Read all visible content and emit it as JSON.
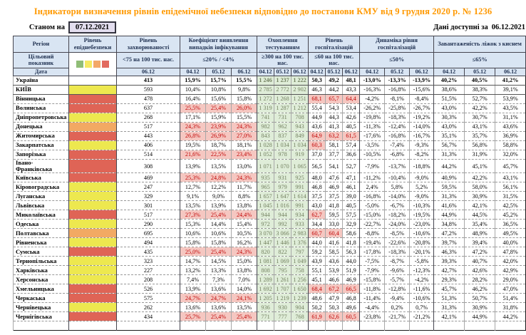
{
  "title": "Індикатори визначення рівнів епідемічної небезпеки відповідно до постанови КМУ від 9 грудня 2020 р. № 1236",
  "as_of_label": "Станом на",
  "as_of_date": "07.12.2021",
  "available_label": "Дані доступні за",
  "available_date": "06.12.2021",
  "colors": {
    "title": "#FF9900",
    "header_bg": "#D9E5F3",
    "asof_box_bg": "#E3DEEF",
    "testing_bg": "#DFEDD8",
    "alert_bg": "#F5C7C1",
    "alert_text": "#C00000"
  },
  "table": {
    "region_header": "Регіон",
    "target_header": "Цільовий показник",
    "date_header": "Дата",
    "legend_colors": {
      "green": "#90BD77",
      "yellow": "#F5E962",
      "orange": "#F3A869",
      "red": "#E26A5E"
    },
    "level_colors": {
      "none": "#FFFFFF",
      "yellow": "#EDE84F",
      "orange": "#F2A963",
      "red": "#DF6456"
    },
    "groups": [
      {
        "label": "Рівень епіднебезпеки",
        "target": "",
        "dates": []
      },
      {
        "label": "Рівень захворюваності",
        "target": "<75 на 100 тис. нас.",
        "dates": [
          "06.12"
        ]
      },
      {
        "label": "Коефіцієнт виявлення випадків інфікування",
        "target": "≤20% / <4%",
        "dates": [
          "04.12",
          "05.12",
          "06.12"
        ]
      },
      {
        "label": "Охоплення тестуванням",
        "target": "≥300 на 100 тис. нас.",
        "dates": [
          "04.12",
          "05.12",
          "06.12"
        ]
      },
      {
        "label": "Рівень госпіталізацій",
        "target": "≤60 на 100 тис. нас.",
        "dates": [
          "04.12",
          "05.12",
          "06.12"
        ]
      },
      {
        "label": "Динаміка рівня госпіталізацій",
        "target": "≤50%",
        "dates": [
          "04.12",
          "05.12",
          "06.12"
        ]
      },
      {
        "label": "Завантаженість ліжок з киснем",
        "target": "≤65%",
        "dates": [
          "04.12",
          "05.12",
          "06.12"
        ]
      }
    ],
    "rows": [
      {
        "region": "Україна",
        "level": "none",
        "incidence": "413",
        "detection": [
          "15,9%",
          "15,7%",
          "15,5%"
        ],
        "testing": [
          "1 246",
          "1 237",
          "1 222"
        ],
        "hosp": [
          "50,3",
          "49,2",
          "48,1"
        ],
        "dynamics": [
          "-13,0%",
          "-13,3%",
          "-13,9%"
        ],
        "beds": [
          "40,2%",
          "40,5%",
          "41,2%"
        ]
      },
      {
        "region": "КИЇВ",
        "level": "yellow",
        "incidence": "593",
        "detection": [
          "10,4%",
          "10,8%",
          "9,8%"
        ],
        "testing": [
          "2 785",
          "2 772",
          "2 902"
        ],
        "hosp": [
          "46,3",
          "44,2",
          "43,3"
        ],
        "dynamics": [
          "-16,3%",
          "-16,8%",
          "-15,6%"
        ],
        "beds": [
          "38,6%",
          "38,3%",
          "39,1%"
        ]
      },
      {
        "region": "Вінницька",
        "level": "red",
        "incidence": "478",
        "detection": [
          "16,4%",
          "15,6%",
          "15,8%"
        ],
        "testing": [
          "1 272",
          "1 268",
          "1 251"
        ],
        "hosp": [
          "68,1",
          "65,7",
          "64,4"
        ],
        "dynamics": [
          "-4,2%",
          "-8,1%",
          "-8,4%"
        ],
        "beds": [
          "51,5%",
          "52,7%",
          "53,9%"
        ]
      },
      {
        "region": "Волинська",
        "level": "red",
        "incidence": "637",
        "detection": [
          "25,5%",
          "25,4%",
          "26,0%"
        ],
        "testing": [
          "1 319",
          "1 287",
          "1 212"
        ],
        "hosp": [
          "55,4",
          "54,3",
          "53,4"
        ],
        "dynamics": [
          "-26,2%",
          "-25,8%",
          "-26,7%"
        ],
        "beds": [
          "43,0%",
          "42,2%",
          "43,5%"
        ]
      },
      {
        "region": "Дніпропетровська",
        "level": "yellow",
        "incidence": "268",
        "detection": [
          "17,1%",
          "15,9%",
          "15,5%"
        ],
        "testing": [
          "741",
          "731",
          "708"
        ],
        "hosp": [
          "44,9",
          "44,3",
          "42,6"
        ],
        "dynamics": [
          "-19,8%",
          "-18,3%",
          "-19,2%"
        ],
        "beds": [
          "30,3%",
          "30,7%",
          "31,1%"
        ]
      },
      {
        "region": "Донецька",
        "level": "orange",
        "incidence": "517",
        "detection": [
          "24,3%",
          "23,9%",
          "24,3%"
        ],
        "testing": [
          "982",
          "962",
          "943"
        ],
        "hosp": [
          "43,6",
          "41,3",
          "40,5"
        ],
        "dynamics": [
          "-11,3%",
          "-12,4%",
          "-14,0%"
        ],
        "beds": [
          "43,0%",
          "43,1%",
          "43,6%"
        ]
      },
      {
        "region": "Житомирська",
        "level": "red",
        "incidence": "443",
        "detection": [
          "26,8%",
          "26,9%",
          "27,0%"
        ],
        "testing": [
          "843",
          "837",
          "849"
        ],
        "hosp": [
          "64,9",
          "63,2",
          "61,5"
        ],
        "dynamics": [
          "-17,6%",
          "-16,8%",
          "-16,7%"
        ],
        "beds": [
          "35,1%",
          "35,7%",
          "36,9%"
        ]
      },
      {
        "region": "Закарпатська",
        "level": "yellow",
        "incidence": "406",
        "detection": [
          "19,5%",
          "18,7%",
          "18,1%"
        ],
        "testing": [
          "1 028",
          "1 034",
          "1 034"
        ],
        "hosp": [
          "60,3",
          "58,1",
          "57,4"
        ],
        "dynamics": [
          "-3,5%",
          "-7,4%",
          "-9,3%"
        ],
        "beds": [
          "56,7%",
          "56,8%",
          "58,8%"
        ]
      },
      {
        "region": "Запорізька",
        "level": "red",
        "incidence": "514",
        "detection": [
          "21,6%",
          "22,5%",
          "23,4%"
        ],
        "testing": [
          "1 052",
          "978",
          "919"
        ],
        "hosp": [
          "37,0",
          "37,7",
          "36,6"
        ],
        "dynamics": [
          "-10,5%",
          "-6,8%",
          "-8,2%"
        ],
        "beds": [
          "31,3%",
          "31,9%",
          "32,0%"
        ]
      },
      {
        "region": "Івано-Франківська",
        "level": "red",
        "incidence": "308",
        "detection": [
          "13,9%",
          "13,5%",
          "13,0%"
        ],
        "testing": [
          "1 071",
          "1 070",
          "1 065"
        ],
        "hosp": [
          "56,5",
          "54,1",
          "52,7"
        ],
        "dynamics": [
          "-7,9%",
          "-13,7%",
          "-18,8%"
        ],
        "beds": [
          "44,2%",
          "45,1%",
          "45,7%"
        ]
      },
      {
        "region": "Київська",
        "level": "red",
        "incidence": "469",
        "detection": [
          "25,3%",
          "24,8%",
          "24,3%"
        ],
        "testing": [
          "935",
          "931",
          "925"
        ],
        "hosp": [
          "48,0",
          "47,6",
          "47,1"
        ],
        "dynamics": [
          "-11,2%",
          "-10,4%",
          "-9,0%"
        ],
        "beds": [
          "40,9%",
          "42,2%",
          "43,1%"
        ]
      },
      {
        "region": "Кіровоградська",
        "level": "yellow",
        "incidence": "247",
        "detection": [
          "12,7%",
          "12,2%",
          "11,7%"
        ],
        "testing": [
          "965",
          "979",
          "991"
        ],
        "hosp": [
          "46,8",
          "46,9",
          "46,1"
        ],
        "dynamics": [
          "2,4%",
          "5,8%",
          "5,2%"
        ],
        "beds": [
          "59,5%",
          "58,0%",
          "56,1%"
        ]
      },
      {
        "region": "Луганська",
        "level": "yellow",
        "incidence": "329",
        "detection": [
          "9,1%",
          "9,0%",
          "8,8%"
        ],
        "testing": [
          "1 657",
          "1 647",
          "1 614"
        ],
        "hosp": [
          "37,5",
          "37,5",
          "39,0"
        ],
        "dynamics": [
          "-16,8%",
          "-14,0%",
          "-9,0%"
        ],
        "beds": [
          "31,3%",
          "30,9%",
          "31,5%"
        ]
      },
      {
        "region": "Львівська",
        "level": "yellow",
        "incidence": "301",
        "detection": [
          "13,5%",
          "13,9%",
          "13,8%"
        ],
        "testing": [
          "1 045",
          "1 016",
          "991"
        ],
        "hosp": [
          "43,0",
          "41,8",
          "40,5"
        ],
        "dynamics": [
          "-5,0%",
          "-6,7%",
          "-10,3%"
        ],
        "beds": [
          "41,6%",
          "42,1%",
          "42,5%"
        ]
      },
      {
        "region": "Миколаївська",
        "level": "red",
        "incidence": "517",
        "detection": [
          "27,3%",
          "25,4%",
          "24,4%"
        ],
        "testing": [
          "944",
          "944",
          "934"
        ],
        "hosp": [
          "62,7",
          "59,5",
          "57,5"
        ],
        "dynamics": [
          "-15,0%",
          "-18,2%",
          "-19,5%"
        ],
        "beds": [
          "44,9%",
          "44,5%",
          "45,2%"
        ]
      },
      {
        "region": "Одеська",
        "level": "yellow",
        "incidence": "290",
        "detection": [
          "15,3%",
          "14,4%",
          "15,4%"
        ],
        "testing": [
          "972",
          "992",
          "933"
        ],
        "hosp": [
          "34,4",
          "33,0",
          "32,9"
        ],
        "dynamics": [
          "-22,7%",
          "-24,0%",
          "-23,0%"
        ],
        "beds": [
          "34,8%",
          "35,4%",
          "36,5%"
        ]
      },
      {
        "region": "Полтавська",
        "level": "orange",
        "incidence": "695",
        "detection": [
          "10,6%",
          "10,6%",
          "10,5%"
        ],
        "testing": [
          "3 070",
          "3 066",
          "2 983"
        ],
        "hosp": [
          "60,7",
          "60,4",
          "58,6"
        ],
        "dynamics": [
          "-8,8%",
          "-8,5%",
          "-10,6%"
        ],
        "beds": [
          "47,2%",
          "48,9%",
          "49,5%"
        ]
      },
      {
        "region": "Рівненська",
        "level": "yellow",
        "incidence": "494",
        "detection": [
          "15,8%",
          "15,8%",
          "16,2%"
        ],
        "testing": [
          "1 447",
          "1 446",
          "1 376"
        ],
        "hosp": [
          "44,0",
          "41,6",
          "41,8"
        ],
        "dynamics": [
          "-19,4%",
          "-22,6%",
          "-20,8%"
        ],
        "beds": [
          "39,7%",
          "39,4%",
          "40,0%"
        ]
      },
      {
        "region": "Сумська",
        "level": "red",
        "incidence": "435",
        "detection": [
          "25,0%",
          "25,4%",
          "24,3%"
        ],
        "testing": [
          "820",
          "822",
          "797"
        ],
        "hosp": [
          "59,2",
          "58,5",
          "56,3"
        ],
        "dynamics": [
          "-17,8%",
          "-18,3%",
          "-20,1%"
        ],
        "beds": [
          "46,3%",
          "47,2%",
          "47,8%"
        ]
      },
      {
        "region": "Тернопільська",
        "level": "yellow",
        "incidence": "323",
        "detection": [
          "14,7%",
          "14,5%",
          "15,0%"
        ],
        "testing": [
          "1 081",
          "1 069",
          "1 049"
        ],
        "hosp": [
          "43,9",
          "43,6",
          "44,0"
        ],
        "dynamics": [
          "-7,5%",
          "-8,7%",
          "-5,8%"
        ],
        "beds": [
          "39,3%",
          "40,7%",
          "42,0%"
        ]
      },
      {
        "region": "Харківська",
        "level": "yellow",
        "incidence": "227",
        "detection": [
          "13,2%",
          "13,3%",
          "13,8%"
        ],
        "testing": [
          "808",
          "795",
          "758"
        ],
        "hosp": [
          "55,1",
          "53,9",
          "51,9"
        ],
        "dynamics": [
          "-7,9%",
          "-9,6%",
          "-12,3%"
        ],
        "beds": [
          "42,7%",
          "42,6%",
          "42,9%"
        ]
      },
      {
        "region": "Херсонська",
        "level": "yellow",
        "incidence": "208",
        "detection": [
          "7,4%",
          "7,3%",
          "7,0%"
        ],
        "testing": [
          "1 289",
          "1 261",
          "1 256"
        ],
        "hosp": [
          "45,1",
          "46,6",
          "46,9"
        ],
        "dynamics": [
          "-15,8%",
          "-5,7%",
          "-4,2%"
        ],
        "beds": [
          "29,3%",
          "28,2%",
          "29,0%"
        ]
      },
      {
        "region": "Хмельницька",
        "level": "red",
        "incidence": "526",
        "detection": [
          "13,9%",
          "13,6%",
          "14,0%"
        ],
        "testing": [
          "1 692",
          "1 707",
          "1 650"
        ],
        "hosp": [
          "68,4",
          "67,2",
          "66,5"
        ],
        "dynamics": [
          "-11,8%",
          "-12,8%",
          "-11,6%"
        ],
        "beds": [
          "45,7%",
          "46,2%",
          "47,0%"
        ]
      },
      {
        "region": "Черкаська",
        "level": "red",
        "incidence": "575",
        "detection": [
          "24,7%",
          "24,7%",
          "24,1%"
        ],
        "testing": [
          "1 205",
          "1 219",
          "1 239"
        ],
        "hosp": [
          "48,6",
          "47,9",
          "46,8"
        ],
        "dynamics": [
          "-11,4%",
          "-9,4%",
          "-10,6%"
        ],
        "beds": [
          "51,3%",
          "50,7%",
          "51,4%"
        ]
      },
      {
        "region": "Чернівецька",
        "level": "yellow",
        "incidence": "262",
        "detection": [
          "13,6%",
          "13,6%",
          "13,5%"
        ],
        "testing": [
          "936",
          "930",
          "904"
        ],
        "hosp": [
          "50,2",
          "50,3",
          "49,6"
        ],
        "dynamics": [
          "-4,4%",
          "0,2%",
          "0,7%"
        ],
        "beds": [
          "31,3%",
          "30,9%",
          "31,8%"
        ]
      },
      {
        "region": "Чернігівська",
        "level": "red",
        "incidence": "434",
        "detection": [
          "25,7%",
          "25,4%",
          "25,4%"
        ],
        "testing": [
          "771",
          "777",
          "768"
        ],
        "hosp": [
          "61,9",
          "62,6",
          "60,5"
        ],
        "dynamics": [
          "-23,8%",
          "-21,7%",
          "-21,2%"
        ],
        "beds": [
          "42,1%",
          "44,9%",
          "44,2%"
        ]
      }
    ],
    "thresholds": {
      "detection_max": 20,
      "hosp_max": 60
    }
  }
}
